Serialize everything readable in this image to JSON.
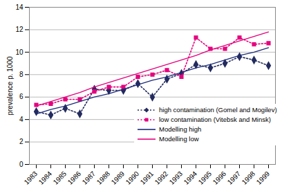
{
  "chart_data": {
    "type": "line",
    "y_label": "prevalence p. 1000",
    "categories": [
      "1983",
      "1984",
      "1985",
      "1986",
      "1987",
      "1988",
      "1989",
      "1990",
      "1991",
      "1992",
      "1993",
      "1994",
      "1995",
      "1996",
      "1997",
      "1998",
      "1999"
    ],
    "series": [
      {
        "name": "high contamination (Gomel and Mogilev)",
        "color": "#232b5e",
        "marker": "diamond",
        "line_style": "dotted",
        "values": [
          4.7,
          4.4,
          5.0,
          4.5,
          6.7,
          6.6,
          6.6,
          7.2,
          6.0,
          7.6,
          8.1,
          8.9,
          8.6,
          9.0,
          9.6,
          9.3,
          8.8
        ]
      },
      {
        "name": "low contamination (Vitebsk and Minsk)",
        "color": "#e5007e",
        "marker": "square",
        "line_style": "dotted",
        "values": [
          5.3,
          5.4,
          5.8,
          5.8,
          6.5,
          6.9,
          6.9,
          7.8,
          8.0,
          8.4,
          7.8,
          11.3,
          10.3,
          10.3,
          11.3,
          10.7,
          10.8
        ]
      },
      {
        "name": "Modelling high",
        "color": "#1b2a7a",
        "line_style": "solid",
        "values": [
          4.5,
          4.9,
          5.2,
          5.6,
          6.0,
          6.3,
          6.7,
          7.1,
          7.5,
          7.8,
          8.2,
          8.6,
          8.9,
          9.3,
          9.7,
          10.0,
          10.4
        ]
      },
      {
        "name": "Modelling low",
        "color": "#e5007e",
        "line_style": "solid",
        "values": [
          5.2,
          5.6,
          6.0,
          6.4,
          6.9,
          7.3,
          7.7,
          8.1,
          8.5,
          8.9,
          9.3,
          9.7,
          10.2,
          10.6,
          11.0,
          11.4,
          11.8
        ]
      }
    ],
    "ylim": [
      0,
      14
    ],
    "yticks": [
      0,
      2,
      4,
      6,
      8,
      10,
      12,
      14
    ],
    "grid": true,
    "legend": "bottom-right"
  }
}
